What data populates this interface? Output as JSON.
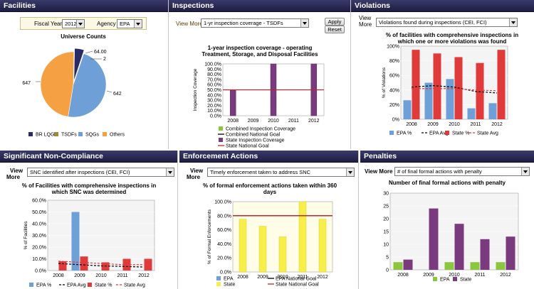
{
  "facilities": {
    "title": "Facilities",
    "fiscal_year_label": "Fiscal Year",
    "fiscal_year_value": "2012",
    "agency_label": "Agency",
    "agency_value": "EPA",
    "chart_title": "Universe Counts",
    "slice_labels": [
      "64.00",
      "2",
      "642",
      "647"
    ],
    "legend": [
      "BR LQGs",
      "TSDFs",
      "SQGs",
      "Others"
    ],
    "colors": [
      "#2a2a66",
      "#9b8a3a",
      "#6e9fd6",
      "#f5a042"
    ]
  },
  "inspections": {
    "title": "Inspections",
    "view_more": "View More",
    "dropdown": "1-yr inspection coverage - TSDFs",
    "apply": "Apply",
    "reset": "Reset",
    "chart_title_1": "1-year inspection coverage - operating",
    "chart_title_2": "Treatment, Storage, and Disposal Facilities",
    "ylabel": "Inspection Coverage",
    "legend": [
      "Combined Inspection Coverage",
      "Combined National Goal",
      "State Inspection Coverage",
      "State National Goal"
    ]
  },
  "violations": {
    "title": "Violations",
    "view_more_1": "View",
    "view_more_2": "More",
    "dropdown": "Violations found during inspections (CEI, FCI)",
    "chart_title_1": "% of facilities with comprehensive inspections in",
    "chart_title_2": "which one or more violations was found",
    "ylabel": "% of Violations",
    "legend": [
      "EPA %",
      "EPA Avg",
      "State %",
      "State Avg"
    ]
  },
  "snc": {
    "title": "Significant Non-Compliance",
    "view_more_1": "View",
    "view_more_2": "More",
    "dropdown": "SNC identified after inspections (CEI, FCI)",
    "chart_title_1": "% of Facilities with comprehensive inspections in",
    "chart_title_2": "which SNC was determined",
    "ylabel": "% of Facilities",
    "legend": [
      "EPA %",
      "EPA Avg",
      "State %",
      "State Avg"
    ]
  },
  "enforcement": {
    "title": "Enforcement Actions",
    "view_more_1": "View",
    "view_more_2": "More",
    "dropdown": "Timely enforcement taken to address SNC",
    "chart_title_1": "% of formal enforcement actions taken within 360",
    "chart_title_2": "days",
    "ylabel": "% of Formal Enforcements",
    "legend": [
      "EPA",
      "State",
      "EPA National Goal",
      "State National Goal"
    ]
  },
  "penalties": {
    "title": "Penalties",
    "view_more": "View More",
    "dropdown": "# of final formal actions with penalty",
    "chart_title": "Number of final formal actions with penalty",
    "legend": [
      "EPA",
      "State"
    ]
  },
  "chart_data": [
    {
      "id": "universe",
      "type": "pie",
      "title": "Universe Counts",
      "categories": [
        "BR LQGs",
        "TSDFs",
        "SQGs",
        "Others"
      ],
      "values": [
        64,
        2,
        642,
        647
      ]
    },
    {
      "id": "inspection",
      "type": "bar",
      "categories": [
        "2008",
        "2009",
        "2010",
        "2011",
        "2012"
      ],
      "ylim": [
        0,
        100
      ],
      "yticks": [
        "0.0%",
        "10.0%",
        "20.0%",
        "30.0%",
        "40.0%",
        "50.0%",
        "60.0%",
        "70.0%",
        "80.0%",
        "90.0%",
        "100.0%"
      ],
      "series": [
        {
          "name": "Combined Inspection Coverage",
          "values": [
            0,
            0,
            0,
            0,
            0
          ]
        },
        {
          "name": "State Inspection Coverage",
          "values": [
            50,
            0,
            100,
            0,
            100
          ]
        },
        {
          "name": "Combined National Goal",
          "values": [
            50,
            50,
            50,
            50,
            50
          ]
        },
        {
          "name": "State National Goal",
          "values": [
            50,
            50,
            50,
            50,
            50
          ]
        }
      ]
    },
    {
      "id": "violations",
      "type": "bar",
      "categories": [
        "2008",
        "2009",
        "2010",
        "2011",
        "2012"
      ],
      "ylim": [
        0,
        100
      ],
      "yticks": [
        "0%",
        "20%",
        "40%",
        "60%",
        "80%",
        "100%"
      ],
      "series": [
        {
          "name": "EPA %",
          "values": [
            26,
            50,
            55,
            15,
            22
          ]
        },
        {
          "name": "State %",
          "values": [
            95,
            90,
            85,
            77,
            95
          ]
        },
        {
          "name": "EPA Avg",
          "values": [
            44,
            46,
            44,
            38,
            36
          ]
        },
        {
          "name": "State Avg",
          "values": [
            42,
            42,
            42,
            40,
            39
          ]
        }
      ]
    },
    {
      "id": "snc",
      "type": "bar",
      "categories": [
        "2008",
        "2009",
        "2010",
        "2011",
        "2012"
      ],
      "ylim": [
        0,
        60
      ],
      "yticks": [
        "0.0%",
        "10.0%",
        "20.0%",
        "30.0%",
        "40.0%",
        "50.0%",
        "60.0%"
      ],
      "series": [
        {
          "name": "EPA %",
          "values": [
            0,
            50,
            0,
            0,
            0
          ]
        },
        {
          "name": "State %",
          "values": [
            8,
            12,
            7,
            10,
            10
          ]
        },
        {
          "name": "EPA Avg",
          "values": [
            6,
            5,
            4,
            3.5,
            3
          ]
        },
        {
          "name": "State Avg",
          "values": [
            8,
            7,
            6,
            5,
            5
          ]
        }
      ]
    },
    {
      "id": "enforcement",
      "type": "bar",
      "categories": [
        "2008",
        "2009",
        "2010",
        "2011",
        "2012"
      ],
      "ylim": [
        0,
        100
      ],
      "yticks": [
        "0.0%",
        "20.0%",
        "40.0%",
        "60.0%",
        "80.0%",
        "100.0%"
      ],
      "series": [
        {
          "name": "EPA",
          "values": [
            0,
            0,
            0,
            0,
            0
          ]
        },
        {
          "name": "State",
          "values": [
            75,
            65,
            50,
            100,
            75
          ]
        },
        {
          "name": "EPA National Goal",
          "values": [
            80,
            80,
            80,
            80,
            80
          ]
        },
        {
          "name": "State National Goal",
          "values": [
            80,
            80,
            80,
            80,
            80
          ]
        }
      ]
    },
    {
      "id": "penalties",
      "type": "bar",
      "title": "Number of final formal actions with penalty",
      "categories": [
        "2008",
        "2009",
        "2010",
        "2011",
        "2012"
      ],
      "ylim": [
        0,
        30
      ],
      "yticks": [
        "0",
        "5",
        "10",
        "15",
        "20",
        "25",
        "30"
      ],
      "series": [
        {
          "name": "EPA",
          "values": [
            3,
            0,
            3,
            3,
            3
          ]
        },
        {
          "name": "State",
          "values": [
            4,
            24,
            18,
            12,
            13
          ]
        }
      ]
    }
  ]
}
